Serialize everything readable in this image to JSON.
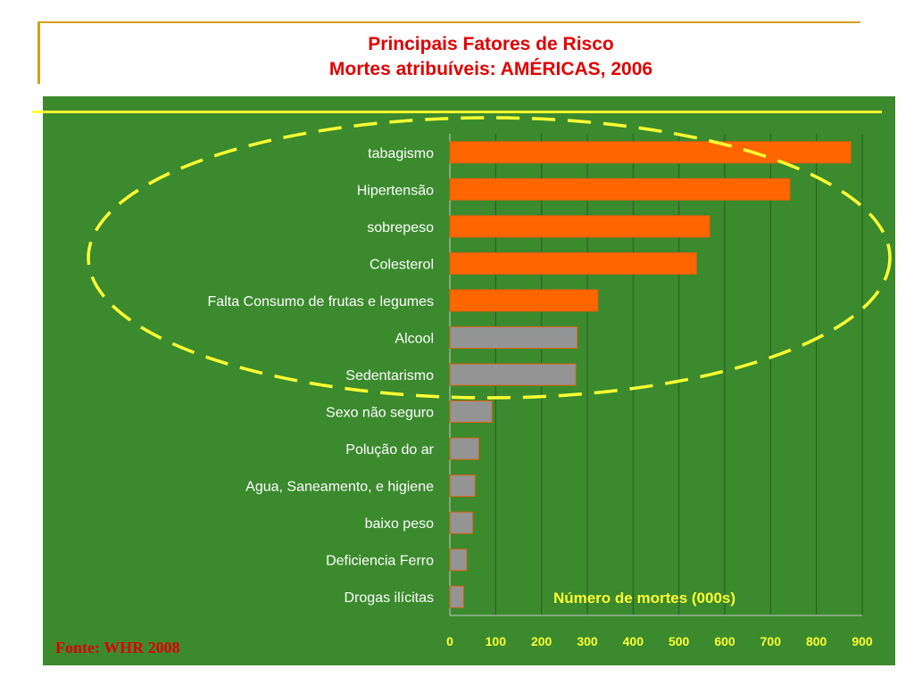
{
  "title_line1": "Principais Fatores de Risco",
  "title_line2": "Mortes atribuíveis: AMÉRICAS, 2006",
  "source": "Fonte:  WHR  2008",
  "colors": {
    "background": "#3b8a2d",
    "highlight_bar": "#ff6600",
    "other_bar": "#949494",
    "bar_border": "#e06010",
    "axis_text": "#ffff33",
    "title": "#e00000",
    "ellipse": "#ffff33"
  },
  "chart_data": {
    "type": "bar",
    "orientation": "horizontal",
    "xlabel": "Número de mortes (000s)",
    "xlim": [
      0,
      900
    ],
    "xticks": [
      "0",
      "100",
      "200",
      "300",
      "400",
      "500",
      "600",
      "700",
      "800",
      "900"
    ],
    "grid": true,
    "categories": [
      "tabagismo",
      "Hipertensão",
      "sobrepeso",
      "Colesterol",
      "Falta Consumo de frutas e legumes",
      "Alcool",
      "Sedentarismo",
      "Sexo não seguro",
      "Polução do ar",
      "Agua, Saneamento, e higiene",
      "baixo peso",
      "Deficiencia Ferro",
      "Drogas ilícitas"
    ],
    "values": [
      875,
      742,
      567,
      538,
      323,
      278,
      275,
      92,
      63,
      55,
      50,
      37,
      30
    ],
    "highlighted": [
      true,
      true,
      true,
      true,
      true,
      false,
      false,
      false,
      false,
      false,
      false,
      false,
      false
    ]
  }
}
